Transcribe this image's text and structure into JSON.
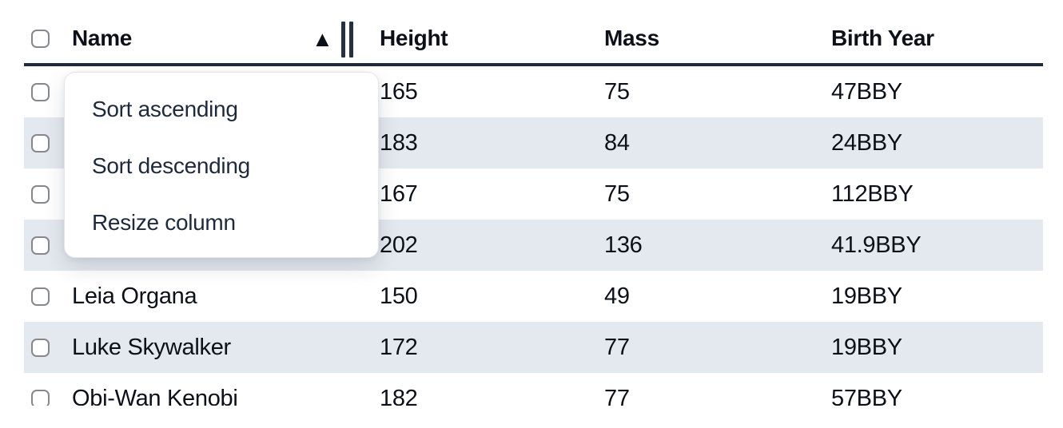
{
  "colors": {
    "text": "#0c1018",
    "menu_text": "#1e2a3b",
    "stripe": "#e4e8ef",
    "header_border": "#1f2a3a",
    "handle": "#27303f",
    "checkbox_border": "#85888f"
  },
  "icons": {
    "sort_ascending": "▲"
  },
  "table": {
    "columns": [
      {
        "label": "Name"
      },
      {
        "label": "Height"
      },
      {
        "label": "Mass"
      },
      {
        "label": "Birth Year"
      }
    ],
    "sort": {
      "column": "Name",
      "direction": "ascending"
    },
    "rows": [
      {
        "name": "",
        "height": "165",
        "mass": "75",
        "birth_year": "47BBY"
      },
      {
        "name": "",
        "height": "183",
        "mass": "84",
        "birth_year": "24BBY"
      },
      {
        "name": "",
        "height": "167",
        "mass": "75",
        "birth_year": "112BBY"
      },
      {
        "name": "",
        "height": "202",
        "mass": "136",
        "birth_year": "41.9BBY"
      },
      {
        "name": "Leia Organa",
        "height": "150",
        "mass": "49",
        "birth_year": "19BBY"
      },
      {
        "name": "Luke Skywalker",
        "height": "172",
        "mass": "77",
        "birth_year": "19BBY"
      },
      {
        "name": "Obi-Wan Kenobi",
        "height": "182",
        "mass": "77",
        "birth_year": "57BBY"
      }
    ]
  },
  "context_menu": {
    "items": [
      {
        "label": "Sort ascending"
      },
      {
        "label": "Sort descending"
      },
      {
        "label": "Resize column"
      }
    ]
  }
}
